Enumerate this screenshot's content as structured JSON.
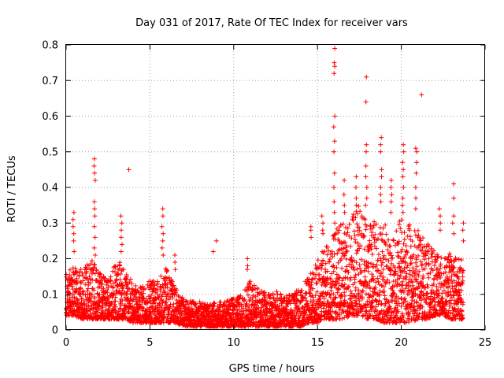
{
  "chart_data": {
    "type": "scatter",
    "title": "Day 031 of 2017, Rate Of TEC Index for receiver vars",
    "xlabel": "GPS time / hours",
    "ylabel": "ROTI / TECUs",
    "xlim": [
      0,
      25
    ],
    "ylim": [
      0,
      0.8
    ],
    "xticks": [
      "0",
      "5",
      "10",
      "15",
      "20",
      "25"
    ],
    "yticks": [
      "0",
      "0.1",
      "0.2",
      "0.3",
      "0.4",
      "0.5",
      "0.6",
      "0.7",
      "0.8"
    ],
    "grid": true,
    "marker": "+",
    "color": "#ff0000",
    "series": [
      {
        "name": "ROTI",
        "envelope_hours": [
          0,
          0.5,
          1,
          1.5,
          2,
          2.5,
          3,
          3.5,
          4,
          4.5,
          5,
          5.5,
          6,
          6.5,
          7,
          7.5,
          8,
          8.5,
          9,
          9.5,
          10,
          10.5,
          11,
          11.5,
          12,
          12.5,
          13,
          13.5,
          14,
          14.5,
          15,
          15.5,
          16,
          16.5,
          17,
          17.5,
          18,
          18.5,
          19,
          19.5,
          20,
          20.5,
          21,
          21.5,
          22,
          22.5,
          23,
          23.5
        ],
        "envelope_low": [
          0.04,
          0.04,
          0.03,
          0.03,
          0.03,
          0.03,
          0.03,
          0.03,
          0.02,
          0.02,
          0.02,
          0.02,
          0.02,
          0.02,
          0.01,
          0.01,
          0.01,
          0.01,
          0.01,
          0.01,
          0.01,
          0.01,
          0.01,
          0.01,
          0.01,
          0.01,
          0.01,
          0.01,
          0.01,
          0.02,
          0.02,
          0.03,
          0.03,
          0.03,
          0.04,
          0.04,
          0.03,
          0.03,
          0.02,
          0.02,
          0.02,
          0.02,
          0.03,
          0.03,
          0.04,
          0.04,
          0.03,
          0.03
        ],
        "envelope_high": [
          0.17,
          0.18,
          0.17,
          0.2,
          0.16,
          0.14,
          0.2,
          0.18,
          0.13,
          0.12,
          0.15,
          0.14,
          0.18,
          0.12,
          0.09,
          0.08,
          0.08,
          0.07,
          0.08,
          0.08,
          0.09,
          0.1,
          0.14,
          0.12,
          0.1,
          0.11,
          0.1,
          0.1,
          0.12,
          0.15,
          0.2,
          0.24,
          0.28,
          0.3,
          0.33,
          0.35,
          0.3,
          0.32,
          0.3,
          0.26,
          0.32,
          0.3,
          0.28,
          0.25,
          0.22,
          0.2,
          0.22,
          0.2
        ],
        "bursts": [
          {
            "x": 0.45,
            "y": [
              0.33,
              0.31,
              0.29,
              0.27,
              0.25,
              0.22
            ]
          },
          {
            "x": 1.7,
            "y": [
              0.48,
              0.46,
              0.44,
              0.42,
              0.36,
              0.34,
              0.32,
              0.29,
              0.26,
              0.23,
              0.21
            ]
          },
          {
            "x": 3.3,
            "y": [
              0.32,
              0.3,
              0.28,
              0.26,
              0.24,
              0.22
            ]
          },
          {
            "x": 3.75,
            "y": [
              0.45
            ]
          },
          {
            "x": 5.75,
            "y": [
              0.34,
              0.32,
              0.29,
              0.27,
              0.25,
              0.23,
              0.21
            ]
          },
          {
            "x": 6.5,
            "y": [
              0.21,
              0.19,
              0.17
            ]
          },
          {
            "x": 9.0,
            "y": [
              0.25
            ]
          },
          {
            "x": 8.75,
            "y": [
              0.22
            ]
          },
          {
            "x": 10.8,
            "y": [
              0.2,
              0.18,
              0.17
            ]
          },
          {
            "x": 14.6,
            "y": [
              0.29,
              0.28,
              0.26
            ]
          },
          {
            "x": 15.3,
            "y": [
              0.32,
              0.3,
              0.28,
              0.27
            ]
          },
          {
            "x": 16.0,
            "y": [
              0.79,
              0.75,
              0.74,
              0.72,
              0.6,
              0.57,
              0.53,
              0.5,
              0.44,
              0.4,
              0.36,
              0.33,
              0.3
            ]
          },
          {
            "x": 16.6,
            "y": [
              0.42,
              0.38,
              0.35,
              0.33
            ]
          },
          {
            "x": 17.3,
            "y": [
              0.43,
              0.4,
              0.37,
              0.35
            ]
          },
          {
            "x": 17.9,
            "y": [
              0.71,
              0.64,
              0.52,
              0.5,
              0.46,
              0.43,
              0.4,
              0.37,
              0.35
            ]
          },
          {
            "x": 18.8,
            "y": [
              0.54,
              0.52,
              0.5,
              0.45,
              0.43,
              0.4,
              0.38,
              0.36
            ]
          },
          {
            "x": 19.4,
            "y": [
              0.42,
              0.4,
              0.38,
              0.36,
              0.33
            ]
          },
          {
            "x": 20.1,
            "y": [
              0.52,
              0.5,
              0.47,
              0.45,
              0.43,
              0.4,
              0.37,
              0.35,
              0.33
            ]
          },
          {
            "x": 20.9,
            "y": [
              0.51,
              0.5,
              0.47,
              0.44,
              0.4,
              0.37,
              0.34
            ]
          },
          {
            "x": 21.2,
            "y": [
              0.66
            ]
          },
          {
            "x": 22.3,
            "y": [
              0.34,
              0.32,
              0.3,
              0.28
            ]
          },
          {
            "x": 23.1,
            "y": [
              0.41,
              0.37,
              0.32,
              0.3,
              0.27
            ]
          },
          {
            "x": 23.7,
            "y": [
              0.3,
              0.28,
              0.25
            ]
          }
        ]
      }
    ]
  }
}
